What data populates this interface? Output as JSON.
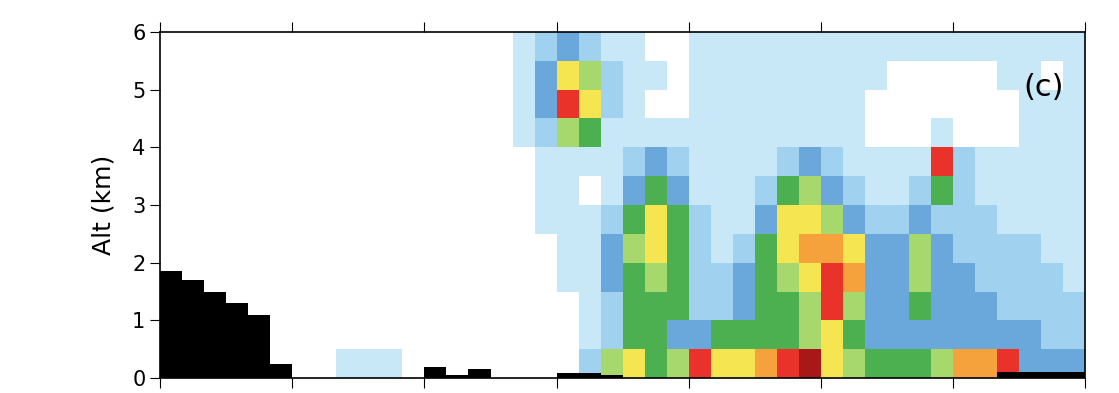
{
  "chart_data": {
    "type": "heatmap",
    "ylabel": "Alt (km)",
    "annotation": "(c)",
    "xlim": [
      0,
      7
    ],
    "xticks": [
      0,
      1,
      2,
      3,
      4,
      5,
      6,
      7
    ],
    "ylim": [
      0,
      6
    ],
    "yticks": [
      0,
      1,
      2,
      3,
      4,
      5,
      6
    ],
    "tick_labels": "y",
    "colors": [
      "#c8e8f8",
      "#a0d2f0",
      "#6aa8dc",
      "#4caf50",
      "#a6d86e",
      "#f5e651",
      "#f6a23c",
      "#e8322a",
      "#a81818"
    ],
    "cells": [
      [
        0,
        0,
        0,
        0,
        0,
        0,
        0,
        0,
        1,
        1,
        1,
        0,
        0,
        0,
        0,
        0,
        0,
        0,
        0,
        2,
        5,
        6,
        4,
        5,
        8,
        6,
        6,
        7,
        8,
        9,
        6,
        5,
        4,
        4,
        4,
        5,
        7,
        7,
        8,
        3,
        3,
        3
      ],
      [
        0,
        0,
        0,
        0,
        0,
        0,
        0,
        0,
        0,
        0,
        0,
        0,
        0,
        0,
        0,
        0,
        0,
        0,
        0,
        1,
        2,
        4,
        4,
        3,
        3,
        4,
        4,
        4,
        4,
        5,
        6,
        4,
        3,
        3,
        3,
        3,
        3,
        3,
        3,
        3,
        2,
        2
      ],
      [
        0,
        0,
        0,
        0,
        0,
        0,
        0,
        0,
        0,
        0,
        0,
        0,
        0,
        0,
        0,
        0,
        0,
        0,
        0,
        1,
        2,
        4,
        4,
        4,
        2,
        2,
        3,
        4,
        4,
        5,
        8,
        5,
        3,
        3,
        4,
        3,
        3,
        3,
        2,
        2,
        2,
        2
      ],
      [
        0,
        0,
        0,
        0,
        0,
        0,
        0,
        0,
        0,
        0,
        0,
        0,
        0,
        0,
        0,
        0,
        0,
        0,
        1,
        1,
        3,
        4,
        5,
        4,
        2,
        2,
        3,
        4,
        5,
        6,
        8,
        7,
        3,
        3,
        5,
        3,
        3,
        2,
        2,
        2,
        2,
        1
      ],
      [
        0,
        0,
        0,
        0,
        0,
        0,
        0,
        0,
        0,
        0,
        0,
        0,
        0,
        0,
        0,
        0,
        0,
        0,
        1,
        1,
        3,
        5,
        6,
        4,
        2,
        1,
        2,
        4,
        6,
        7,
        7,
        6,
        3,
        3,
        5,
        3,
        2,
        2,
        2,
        2,
        1,
        1
      ],
      [
        0,
        0,
        0,
        0,
        0,
        0,
        0,
        0,
        0,
        0,
        0,
        0,
        0,
        0,
        0,
        0,
        0,
        1,
        1,
        1,
        2,
        4,
        6,
        4,
        2,
        1,
        1,
        3,
        6,
        6,
        5,
        3,
        2,
        2,
        3,
        2,
        2,
        2,
        1,
        1,
        1,
        1
      ],
      [
        0,
        0,
        0,
        0,
        0,
        0,
        0,
        0,
        0,
        0,
        0,
        0,
        0,
        0,
        0,
        0,
        0,
        1,
        1,
        0,
        1,
        3,
        4,
        3,
        1,
        1,
        1,
        2,
        4,
        5,
        3,
        2,
        1,
        1,
        2,
        4,
        2,
        1,
        1,
        1,
        1,
        1
      ],
      [
        0,
        0,
        0,
        0,
        0,
        0,
        0,
        0,
        0,
        0,
        0,
        0,
        0,
        0,
        0,
        0,
        0,
        1,
        1,
        1,
        1,
        2,
        3,
        2,
        1,
        1,
        1,
        1,
        2,
        3,
        2,
        1,
        1,
        1,
        1,
        8,
        2,
        1,
        1,
        1,
        1,
        1
      ],
      [
        0,
        0,
        0,
        0,
        0,
        0,
        0,
        0,
        0,
        0,
        0,
        0,
        0,
        0,
        0,
        0,
        1,
        2,
        5,
        4,
        1,
        1,
        1,
        1,
        1,
        1,
        1,
        1,
        1,
        1,
        1,
        1,
        0,
        0,
        0,
        1,
        0,
        0,
        0,
        1,
        1,
        1
      ],
      [
        0,
        0,
        0,
        0,
        0,
        0,
        0,
        0,
        0,
        0,
        0,
        0,
        0,
        0,
        0,
        0,
        1,
        3,
        8,
        6,
        2,
        1,
        0,
        0,
        1,
        1,
        1,
        1,
        1,
        1,
        1,
        1,
        0,
        0,
        0,
        0,
        0,
        0,
        0,
        1,
        1,
        1
      ],
      [
        0,
        0,
        0,
        0,
        0,
        0,
        0,
        0,
        0,
        0,
        0,
        0,
        0,
        0,
        0,
        0,
        1,
        3,
        6,
        5,
        2,
        1,
        1,
        0,
        1,
        1,
        1,
        1,
        1,
        1,
        1,
        1,
        1,
        0,
        0,
        0,
        0,
        0,
        1,
        1,
        0,
        1
      ],
      [
        0,
        0,
        0,
        0,
        0,
        0,
        0,
        0,
        0,
        0,
        0,
        0,
        0,
        0,
        0,
        0,
        1,
        2,
        3,
        2,
        1,
        1,
        0,
        0,
        1,
        1,
        1,
        1,
        1,
        1,
        1,
        1,
        1,
        1,
        1,
        1,
        1,
        1,
        1,
        1,
        1,
        1
      ]
    ],
    "terrain": {
      "color": "#000000",
      "values": [
        1.85,
        1.7,
        1.5,
        1.3,
        1.1,
        0.25,
        0,
        0,
        0,
        0,
        0,
        0,
        0.2,
        0.05,
        0.15,
        0,
        0,
        0,
        0.08,
        0.08,
        0.05,
        0,
        0,
        0,
        0,
        0,
        0,
        0,
        0,
        0,
        0,
        0,
        0,
        0,
        0,
        0,
        0,
        0,
        0.1,
        0.1,
        0.1,
        0.1
      ]
    }
  }
}
